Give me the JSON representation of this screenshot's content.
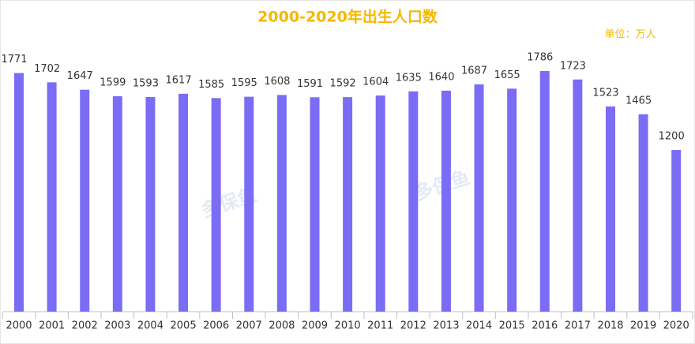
{
  "chart_data": {
    "type": "bar",
    "title": "2000-2020年出生人口数",
    "unit_note": "单位：万人",
    "watermark": "多保鱼",
    "categories": [
      "2000",
      "2001",
      "2002",
      "2003",
      "2004",
      "2005",
      "2006",
      "2007",
      "2008",
      "2009",
      "2010",
      "2011",
      "2012",
      "2013",
      "2014",
      "2015",
      "2016",
      "2017",
      "2018",
      "2019",
      "2020"
    ],
    "values": [
      1771,
      1702,
      1647,
      1599,
      1593,
      1617,
      1585,
      1595,
      1608,
      1591,
      1592,
      1604,
      1635,
      1640,
      1687,
      1655,
      1786,
      1723,
      1523,
      1465,
      1200
    ],
    "color": "#7b6cf6",
    "title_color": "#f5b800"
  }
}
